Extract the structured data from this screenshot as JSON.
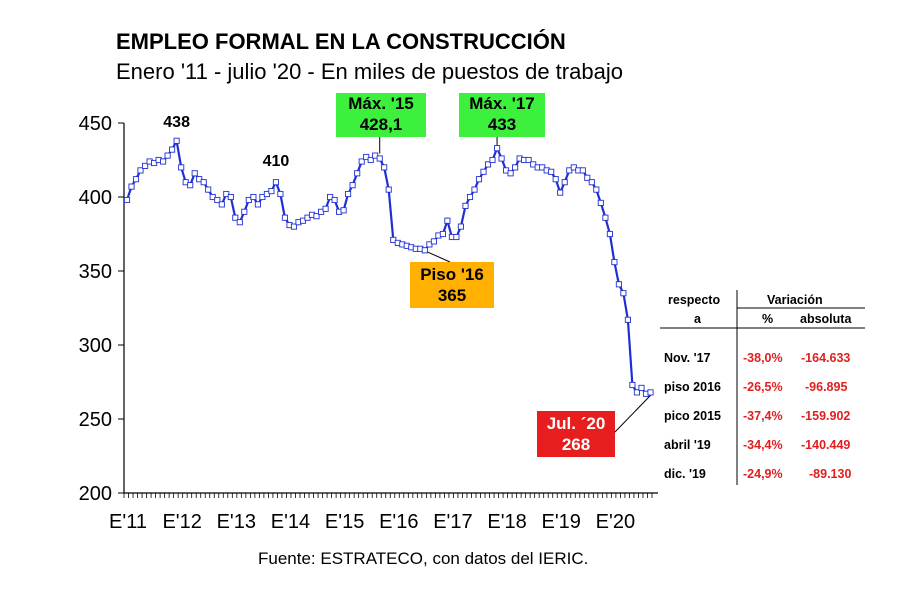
{
  "title": "EMPLEO FORMAL EN LA CONSTRUCCIÓN",
  "subtitle": "Enero '11 - julio '20 - En miles de puestos de trabajo",
  "source": "Fuente: ESTRATECO, con datos del IERIC.",
  "colors": {
    "line": "#1f2fd4",
    "green": "#3ef03e",
    "orange": "#ffb000",
    "red": "#e81e1e",
    "table_red": "#e02020"
  },
  "chart_data": {
    "type": "line",
    "title": "EMPLEO FORMAL EN LA CONSTRUCCIÓN",
    "ylim": [
      200,
      450
    ],
    "yticks": [
      200,
      250,
      300,
      350,
      400,
      450
    ],
    "xticks": [
      "E'11",
      "E'12",
      "E'13",
      "E'14",
      "E'15",
      "E'16",
      "E'17",
      "E'18",
      "E'19",
      "E'20"
    ],
    "grid": false,
    "series": [
      {
        "values": [
          398,
          407,
          412,
          418,
          421,
          424,
          423,
          425,
          424,
          428,
          432,
          438,
          420,
          410,
          408,
          416,
          412,
          410,
          405,
          400,
          398,
          395,
          402,
          400,
          386,
          383,
          390,
          398,
          400,
          395,
          400,
          402,
          404,
          410,
          402,
          386,
          381,
          380,
          383,
          384,
          386,
          388,
          387,
          390,
          392,
          400,
          398,
          390,
          391,
          402,
          408,
          416,
          424,
          427,
          425,
          428,
          426,
          420,
          405,
          371,
          369,
          368,
          367,
          366,
          365,
          365,
          364,
          368,
          370,
          374,
          375,
          384,
          373,
          373,
          380,
          394,
          400,
          405,
          412,
          417,
          422,
          425,
          433,
          426,
          418,
          416,
          420,
          426,
          425,
          425,
          422,
          420,
          420,
          418,
          417,
          412,
          403,
          410,
          418,
          420,
          418,
          418,
          413,
          410,
          405,
          396,
          386,
          375,
          356,
          341,
          335,
          317,
          273,
          268,
          271,
          267,
          268
        ]
      }
    ],
    "annotations": [
      {
        "label": "438"
      },
      {
        "label": "410"
      },
      {
        "label": "Máx. '15",
        "value": "428,1"
      },
      {
        "label": "Máx. '17",
        "value": "433"
      },
      {
        "label": "Piso '16",
        "value": "365"
      },
      {
        "label": "Jul. ´20",
        "value": "268"
      }
    ]
  },
  "table": {
    "header_left": [
      "respecto",
      "a"
    ],
    "header_variacion": "Variación",
    "header_pct": "%",
    "header_abs": "absoluta",
    "rows": [
      {
        "ref": "Nov. '17",
        "pct": "-38,0%",
        "abs": "-164.633"
      },
      {
        "ref": "piso 2016",
        "pct": "-26,5%",
        "abs": "-96.895"
      },
      {
        "ref": "pico 2015",
        "pct": "-37,4%",
        "abs": "-159.902"
      },
      {
        "ref": "abril '19",
        "pct": "-34,4%",
        "abs": "-140.449"
      },
      {
        "ref": "dic. '19",
        "pct": "-24,9%",
        "abs": "-89.130"
      }
    ]
  }
}
